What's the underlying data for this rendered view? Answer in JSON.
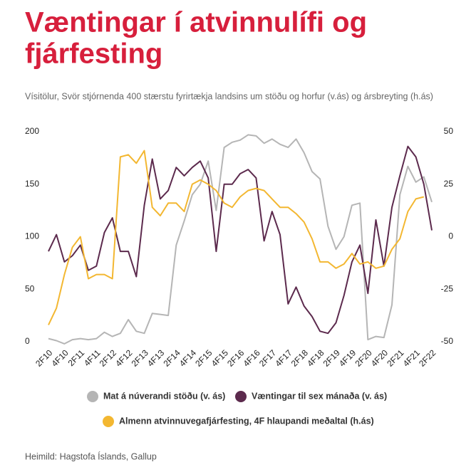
{
  "chart_data": {
    "type": "line",
    "title_lines": [
      "Væntingar í atvinnulífi og",
      "fjárfesting"
    ],
    "subtitle": "Vísitölur, Svör stjórnenda 400 stærstu fyrirtækja landsins um stöðu og horfur (v.ás) og ársbreyting (h.ás)",
    "source": "Heimild: Hagstofa Íslands,  Gallup",
    "categories": [
      "2F10",
      null,
      "4F10",
      null,
      "2F11",
      null,
      "4F11",
      null,
      "2F12",
      null,
      "4F12",
      null,
      "2F13",
      null,
      "4F13",
      null,
      "2F14",
      null,
      "4F14",
      null,
      "2F15",
      null,
      "4F15",
      null,
      "2F16",
      null,
      "4F16",
      null,
      "2F17",
      null,
      "4F17",
      null,
      "2F18",
      null,
      "4F18",
      null,
      "2F19",
      null,
      "4F19",
      null,
      "2F20",
      null,
      "4F20",
      null,
      "2F21",
      null,
      "4F21",
      null,
      "2F22"
    ],
    "ylim": [
      0,
      200
    ],
    "yticks": [
      0,
      50,
      100,
      150,
      200
    ],
    "y2lim": [
      -50,
      50
    ],
    "y2ticks": [
      -50,
      -25,
      0,
      25,
      50
    ],
    "series": [
      {
        "name": "Mat á núverandi stöðu (v. ás)",
        "color": "#b5b5b5",
        "values": [
          3,
          1,
          -2,
          2,
          3,
          2,
          3,
          9,
          5,
          8,
          21,
          10,
          8,
          27,
          26,
          25,
          92,
          115,
          140,
          150,
          172,
          125,
          185,
          190,
          192,
          197,
          196,
          189,
          193,
          188,
          185,
          193,
          180,
          162,
          155,
          110,
          88,
          100,
          130,
          132,
          2,
          5,
          4,
          35,
          140,
          167,
          152,
          157,
          133
        ]
      },
      {
        "name": "Væntingar til sex mánaða (v. ás)",
        "color": "#5c2a4d",
        "axis": "y2",
        "values": [
          -7,
          1,
          -12,
          -9,
          -4,
          -16,
          -14,
          2,
          9,
          -7,
          -7,
          -19,
          15,
          37,
          18,
          22,
          33,
          29,
          33,
          36,
          28,
          -7,
          25,
          25,
          30,
          32,
          28,
          -2,
          12,
          1,
          -32,
          -24,
          -33,
          -38,
          -45,
          -46,
          -41,
          -28,
          -12,
          -4,
          -27,
          8,
          -14,
          14,
          29,
          43,
          38,
          25,
          3
        ]
      },
      {
        "name": "Almenn atvinnuvegafjárfesting, 4F hlaupandi meðaltal (h.ás)",
        "color": "#f3b731",
        "axis": "y2",
        "values": [
          -42,
          -34,
          -18,
          -5,
          0,
          -20,
          -18,
          -18,
          -20,
          38,
          39,
          35,
          41,
          14,
          10,
          16,
          16,
          12,
          25,
          27,
          25,
          22,
          16,
          14,
          19,
          22,
          23,
          22,
          18,
          14,
          14,
          11,
          7,
          -1,
          -12,
          -12,
          -15,
          -13,
          -8,
          -13,
          -12,
          -15,
          -14,
          -6,
          -1,
          12,
          18,
          19,
          null
        ]
      }
    ]
  }
}
